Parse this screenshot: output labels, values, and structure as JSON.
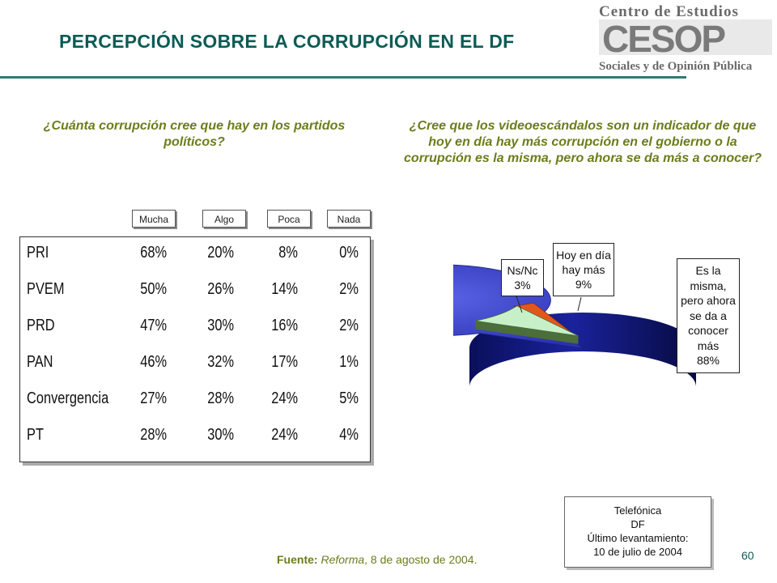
{
  "slide": {
    "title": "PERCEPCIÓN SOBRE LA CORRUPCIÓN EN EL DF",
    "page_number": "60",
    "source_label": "Fuente:",
    "source_publication": "Reforma",
    "source_date": ", 8 de agosto de 2004."
  },
  "logo": {
    "line1": "Centro de Estudios",
    "acronym": "CESOP",
    "line2": "Sociales y de Opinión Pública"
  },
  "colors": {
    "teal": "#0d5b55",
    "olive": "#6b7d1c",
    "pie_blue": "#3b43c9",
    "pie_green": "#c8f0c8",
    "pie_orange": "#e2581c"
  },
  "left_question": "¿Cuánta corrupción cree que hay en los partidos políticos?",
  "right_question": "¿Cree que los videoescándalos son un indicador de que hoy en día hay más corrupción en el gobierno o la corrupción es la misma, pero ahora se da más a conocer?",
  "table_legend": [
    "Mucha",
    "Algo",
    "Poca",
    "Nada"
  ],
  "table_rows": [
    {
      "party": "PRI",
      "values": [
        "68%",
        "20%",
        "8%",
        "0%"
      ]
    },
    {
      "party": "PVEM",
      "values": [
        "50%",
        "26%",
        "14%",
        "2%"
      ]
    },
    {
      "party": "PRD",
      "values": [
        "47%",
        "30%",
        "16%",
        "2%"
      ]
    },
    {
      "party": "PAN",
      "values": [
        "46%",
        "32%",
        "17%",
        "1%"
      ]
    },
    {
      "party": "Convergencia",
      "values": [
        "27%",
        "28%",
        "24%",
        "5%"
      ]
    },
    {
      "party": "PT",
      "values": [
        "28%",
        "30%",
        "24%",
        "4%"
      ]
    }
  ],
  "pie_labels": {
    "nsnc": [
      "Ns/Nc",
      "3%"
    ],
    "hoy": [
      "Hoy en día",
      "hay más",
      "9%"
    ],
    "misma": [
      "Es la",
      "misma,",
      "pero ahora",
      "se da a",
      "conocer",
      "más",
      "88%"
    ]
  },
  "note": [
    "Telefónica",
    "DF",
    "Último levantamiento:",
    "10 de julio de 2004"
  ],
  "chart_data": [
    {
      "type": "table",
      "title": "¿Cuánta corrupción cree que hay en los partidos políticos?",
      "columns": [
        "Mucha",
        "Algo",
        "Poca",
        "Nada"
      ],
      "categories": [
        "PRI",
        "PVEM",
        "PRD",
        "PAN",
        "Convergencia",
        "PT"
      ],
      "series": [
        {
          "name": "Mucha",
          "values": [
            68,
            50,
            47,
            46,
            27,
            28
          ]
        },
        {
          "name": "Algo",
          "values": [
            20,
            26,
            30,
            32,
            28,
            30
          ]
        },
        {
          "name": "Poca",
          "values": [
            8,
            14,
            16,
            17,
            24,
            24
          ]
        },
        {
          "name": "Nada",
          "values": [
            0,
            2,
            2,
            1,
            5,
            4
          ]
        }
      ]
    },
    {
      "type": "pie",
      "title": "¿Cree que los videoescándalos son un indicador de que hoy en día hay más corrupción en el gobierno o la corrupción es la misma, pero ahora se da más a conocer?",
      "categories": [
        "Ns/Nc",
        "Hoy en día hay más",
        "Es la misma, pero ahora se da a conocer más"
      ],
      "values": [
        3,
        9,
        88
      ],
      "colors": [
        "#e2581c",
        "#c8f0c8",
        "#3b43c9"
      ]
    }
  ]
}
